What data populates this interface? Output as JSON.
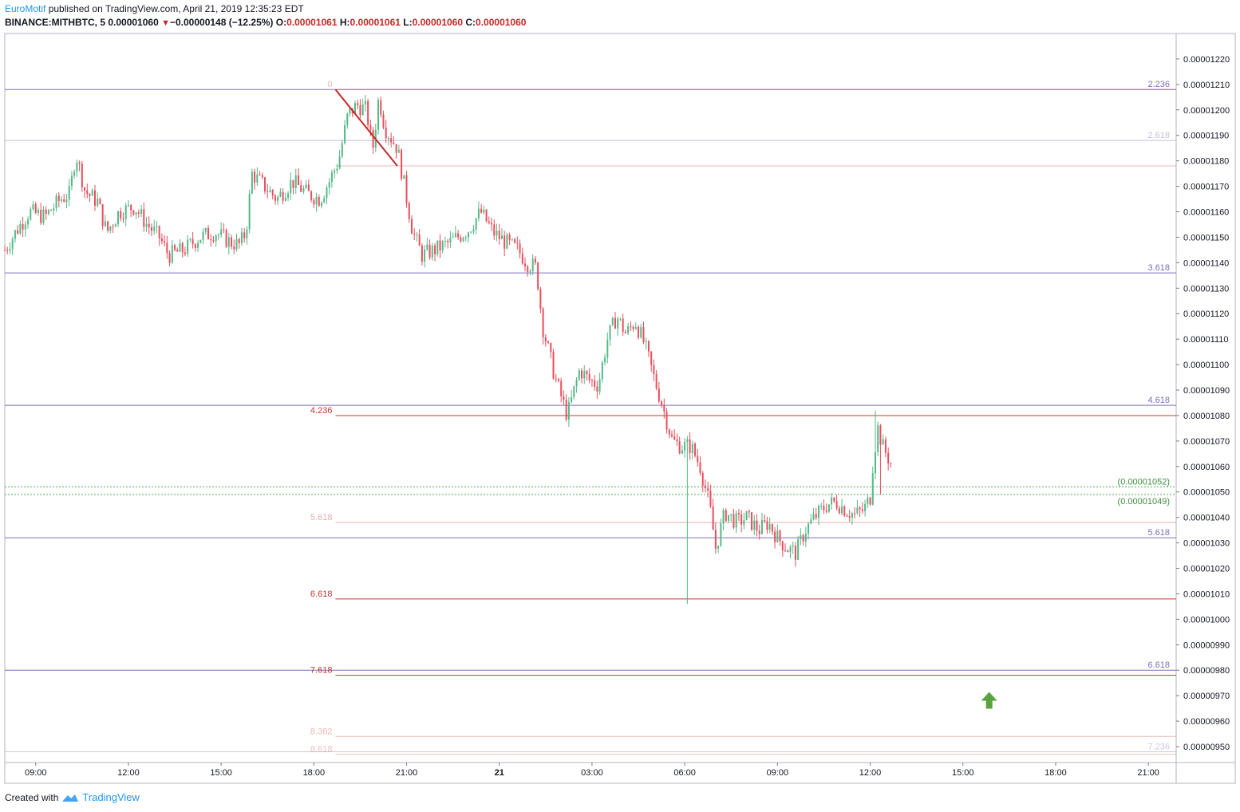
{
  "header": {
    "author": "EuroMotif",
    "published": "published on TradingView.com, April 21, 2019 12:35:23 EDT",
    "symbol": "BINANCE:MITHBTC, 5",
    "last": "0.00001060",
    "change": "−0.00000148 (−12.25%)",
    "o_label": "O:",
    "o": "0.00001061",
    "h_label": "H:",
    "h": "0.00001061",
    "l_label": "L:",
    "l": "0.00001060",
    "c_label": "C:",
    "c": "0.00001060"
  },
  "footer": {
    "created_with": "Created with",
    "brand": "TradingView"
  },
  "colors": {
    "up": "#53b987",
    "down": "#eb4d5c",
    "purple": "#7e6fb6",
    "red": "#c0392b",
    "green": "#4caf50"
  },
  "chart_data": {
    "type": "candlestick",
    "title": "BINANCE:MITHBTC, 5",
    "ylim": [
      9.45e-06,
      1.23e-05
    ],
    "y_ticks": [
      "0.00001220",
      "0.00001210",
      "0.00001200",
      "0.00001190",
      "0.00001180",
      "0.00001170",
      "0.00001160",
      "0.00001150",
      "0.00001140",
      "0.00001130",
      "0.00001120",
      "0.00001110",
      "0.00001100",
      "0.00001090",
      "0.00001080",
      "0.00001070",
      "0.00001060",
      "0.00001050",
      "0.00001040",
      "0.00001030",
      "0.00001020",
      "0.00001010",
      "0.00001000",
      "0.00000990",
      "0.00000980",
      "0.00000970",
      "0.00000960",
      "0.00000950"
    ],
    "x_ticks": [
      {
        "label": "09:00",
        "h": 9
      },
      {
        "label": "12:00",
        "h": 12
      },
      {
        "label": "15:00",
        "h": 15
      },
      {
        "label": "18:00",
        "h": 18
      },
      {
        "label": "21:00",
        "h": 21
      },
      {
        "label": "21",
        "h": 24
      },
      {
        "label": "03:00",
        "h": 27
      },
      {
        "label": "06:00",
        "h": 30
      },
      {
        "label": "09:00",
        "h": 33
      },
      {
        "label": "12:00",
        "h": 36
      },
      {
        "label": "15:00",
        "h": 39
      },
      {
        "label": "18:00",
        "h": 42
      },
      {
        "label": "21:00",
        "h": 45
      }
    ],
    "x_range_hours": [
      8.0,
      45.9
    ],
    "fib_purple": [
      {
        "label": "2.236",
        "price": 1.208e-05
      },
      {
        "label": "2.618",
        "price": 1.188e-05
      },
      {
        "label": "3.618",
        "price": 1.136e-05
      },
      {
        "label": "4.618",
        "price": 1.084e-05
      },
      {
        "label": "5.618",
        "price": 1.032e-05
      },
      {
        "label": "6.618",
        "price": 9.8e-06
      },
      {
        "label": "7.236",
        "price": 9.48e-06
      }
    ],
    "fib_red": [
      {
        "label": "0",
        "price": 1.208e-05
      },
      {
        "label": "",
        "price": 1.178e-05
      },
      {
        "label": "4.236",
        "price": 1.08e-05
      },
      {
        "label": "5.618",
        "price": 1.038e-05
      },
      {
        "label": "6.618",
        "price": 1.008e-05
      },
      {
        "label": "7.618",
        "price": 9.78e-06
      },
      {
        "label": "8.382",
        "price": 9.54e-06
      },
      {
        "label": "8.618",
        "price": 9.47e-06
      }
    ],
    "green_levels": [
      {
        "label": "(0.00001052)",
        "price": 1.052e-05
      },
      {
        "label": "(0.00001049)",
        "price": 1.049e-05
      }
    ],
    "trend_line": {
      "start": {
        "h": 18.7,
        "price": 1.208e-05
      },
      "end": {
        "h": 20.7,
        "price": 1.178e-05
      }
    },
    "arrow": {
      "h": 39.85,
      "price": 9.68e-06
    },
    "price_path": [
      [
        8.0,
        1.145e-05
      ],
      [
        8.4,
        1.153e-05
      ],
      [
        8.8,
        1.16e-05
      ],
      [
        9.3,
        1.158e-05
      ],
      [
        9.8,
        1.165e-05
      ],
      [
        10.1,
        1.167e-05
      ],
      [
        10.3,
        1.183e-05
      ],
      [
        10.6,
        1.168e-05
      ],
      [
        11.0,
        1.164e-05
      ],
      [
        11.3,
        1.152e-05
      ],
      [
        11.7,
        1.16e-05
      ],
      [
        12.2,
        1.162e-05
      ],
      [
        12.6,
        1.155e-05
      ],
      [
        13.0,
        1.15e-05
      ],
      [
        13.3,
        1.143e-05
      ],
      [
        13.8,
        1.145e-05
      ],
      [
        14.3,
        1.15e-05
      ],
      [
        14.8,
        1.152e-05
      ],
      [
        15.3,
        1.148e-05
      ],
      [
        15.6,
        1.147e-05
      ],
      [
        15.8,
        1.152e-05
      ],
      [
        16.0,
        1.175e-05
      ],
      [
        16.4,
        1.17e-05
      ],
      [
        16.8,
        1.165e-05
      ],
      [
        17.3,
        1.172e-05
      ],
      [
        17.8,
        1.167e-05
      ],
      [
        18.2,
        1.165e-05
      ],
      [
        18.5,
        1.172e-05
      ],
      [
        18.8,
        1.18e-05
      ],
      [
        19.1,
        1.198e-05
      ],
      [
        19.4,
        1.202e-05
      ],
      [
        19.7,
        1.2e-05
      ],
      [
        19.9,
        1.184e-05
      ],
      [
        20.1,
        1.205e-05
      ],
      [
        20.3,
        1.193e-05
      ],
      [
        20.7,
        1.185e-05
      ],
      [
        20.9,
        1.172e-05
      ],
      [
        21.2,
        1.152e-05
      ],
      [
        21.5,
        1.143e-05
      ],
      [
        21.9,
        1.145e-05
      ],
      [
        22.4,
        1.148e-05
      ],
      [
        23.0,
        1.153e-05
      ],
      [
        23.4,
        1.16e-05
      ],
      [
        23.8,
        1.152e-05
      ],
      [
        24.2,
        1.148e-05
      ],
      [
        24.6,
        1.145e-05
      ],
      [
        24.9,
        1.14e-05
      ],
      [
        25.2,
        1.138e-05
      ],
      [
        25.4,
        1.115e-05
      ],
      [
        25.8,
        1.095e-05
      ],
      [
        26.2,
        1.08e-05
      ],
      [
        26.6,
        1.098e-05
      ],
      [
        26.9,
        1.094e-05
      ],
      [
        27.2,
        1.092e-05
      ],
      [
        27.5,
        1.11e-05
      ],
      [
        27.8,
        1.119e-05
      ],
      [
        28.1,
        1.112e-05
      ],
      [
        28.4,
        1.117e-05
      ],
      [
        28.7,
        1.108e-05
      ],
      [
        29.0,
        1.095e-05
      ],
      [
        29.3,
        1.083e-05
      ],
      [
        29.6,
        1.07e-05
      ],
      [
        29.9,
        1.068e-05
      ],
      [
        30.2,
        1.068e-05
      ],
      [
        30.5,
        1.06e-05
      ],
      [
        30.8,
        1.045e-05
      ],
      [
        31.0,
        1.028e-05
      ],
      [
        31.3,
        1.042e-05
      ],
      [
        31.7,
        1.038e-05
      ],
      [
        32.0,
        1.04e-05
      ],
      [
        32.4,
        1.035e-05
      ],
      [
        32.7,
        1.038e-05
      ],
      [
        33.0,
        1.032e-05
      ],
      [
        33.3,
        1.028e-05
      ],
      [
        33.6,
        1.026e-05
      ],
      [
        33.9,
        1.035e-05
      ],
      [
        34.2,
        1.04e-05
      ],
      [
        34.6,
        1.045e-05
      ],
      [
        34.9,
        1.046e-05
      ],
      [
        35.2,
        1.043e-05
      ],
      [
        35.5,
        1.041e-05
      ],
      [
        35.8,
        1.043e-05
      ],
      [
        36.0,
        1.048e-05
      ],
      [
        36.1,
        1.063e-05
      ],
      [
        36.25,
        1.075e-05
      ],
      [
        36.4,
        1.068e-05
      ],
      [
        36.6,
        1.063e-05
      ],
      [
        36.7,
        1.06e-05
      ]
    ]
  }
}
